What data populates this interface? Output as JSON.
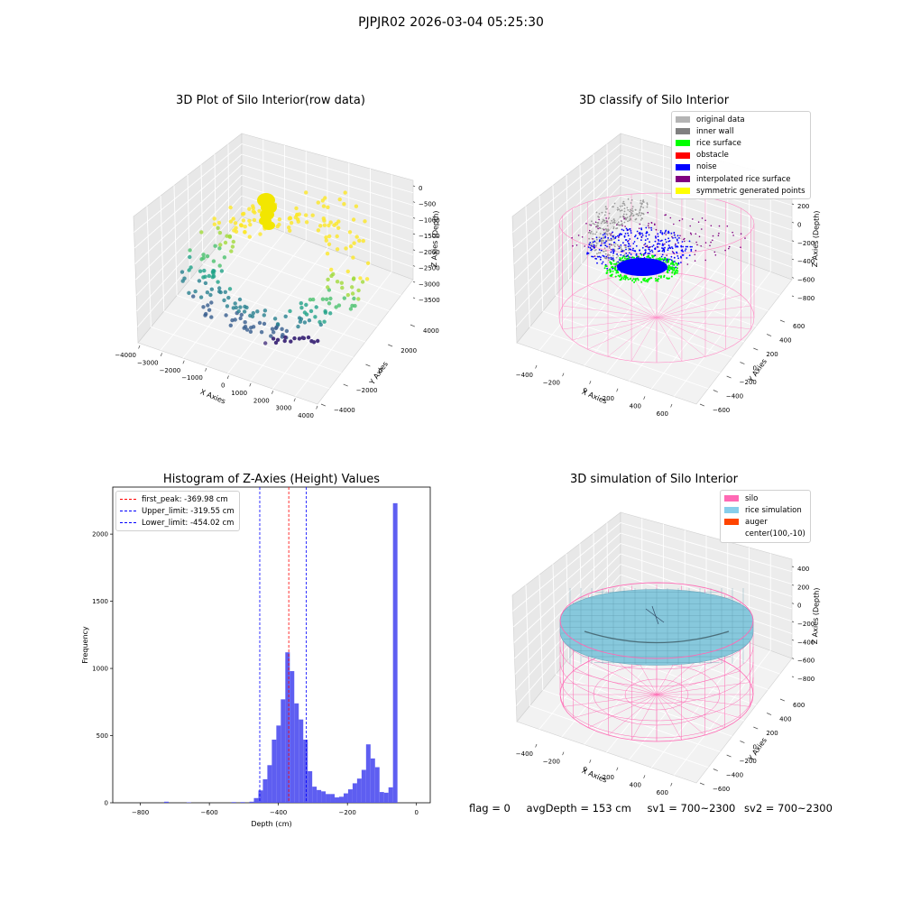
{
  "suptitle": "PJPJR02 2026-03-04 05:25:30",
  "footer": {
    "flag": "flag = 0",
    "avg": "avgDepth = 153 cm",
    "sv1": "sv1 = 700~2300",
    "sv2": "sv2 = 700~2300"
  },
  "chart_data": [
    {
      "type": "scatter",
      "projection": "3d",
      "title": "3D Plot of Silo Interior(row data)",
      "xlabel": "X Axies",
      "ylabel": "Y Axies",
      "zlabel": "Z Axies (Depth)",
      "x_ticks": [
        "−4000",
        "−3000",
        "−2000",
        "−1000",
        "0",
        "1000",
        "2000",
        "3000",
        "4000"
      ],
      "y_ticks": [
        "−4000",
        "−2000",
        "0",
        "2000",
        "4000"
      ],
      "z_ticks": [
        "0",
        "−500",
        "−1000",
        "−1500",
        "−2000",
        "−2500",
        "−3000",
        "−3500"
      ],
      "xlim": [
        -4000,
        4000
      ],
      "ylim": [
        -4000,
        4000
      ],
      "zlim": [
        -3800,
        0
      ],
      "colormap": "viridis",
      "series": [
        {
          "name": "",
          "color": "#eaea1a",
          "points": [
            [
              -900,
              3300,
              -520
            ],
            [
              -850,
              3250,
              -620
            ],
            [
              -880,
              3280,
              -720
            ],
            [
              -820,
              3200,
              -850
            ],
            [
              -860,
              3230,
              -950
            ]
          ]
        }
      ]
    },
    {
      "type": "scatter",
      "projection": "3d",
      "title": "3D classify of Silo Interior",
      "xlabel": "X Axies",
      "ylabel": "Y Axies",
      "zlabel": "Z Axies (Depth)",
      "x_ticks": [
        "−400",
        "−200",
        "0",
        "200",
        "400",
        "600"
      ],
      "y_ticks": [
        "−600",
        "−400",
        "−200",
        "0",
        "200",
        "400",
        "600"
      ],
      "z_ticks": [
        "200",
        "0",
        "−200",
        "−400",
        "−600",
        "−800"
      ],
      "legend": [
        "original data",
        "inner wall",
        "rice surface",
        "obstacle",
        "noise",
        "interpolated rice surface",
        "symmetric generated points"
      ],
      "legend_colors": [
        "#b4b4b4",
        "#808080",
        "#00ff00",
        "#ff0000",
        "#0000ff",
        "#800080",
        "#ffff00"
      ],
      "legend_position": "top-right"
    },
    {
      "type": "bar",
      "title": "Histogram of Z-Axies (Height) Values",
      "xlabel": "Depth (cm)",
      "ylabel": "Frequency",
      "xlim": [
        -880,
        40
      ],
      "ylim": [
        0,
        2350
      ],
      "x_ticks": [
        "−800",
        "−600",
        "−400",
        "−200",
        "0"
      ],
      "y_ticks": [
        "0",
        "500",
        "1000",
        "1500",
        "2000"
      ],
      "bin_width": 13,
      "bins": [
        [
          -731,
          -718,
          8
        ],
        [
          -666,
          -653,
          3
        ],
        [
          -536,
          -523,
          5
        ],
        [
          -510,
          -497,
          5
        ],
        [
          -484,
          -471,
          8
        ],
        [
          -471,
          -458,
          35
        ],
        [
          -458,
          -445,
          92
        ],
        [
          -445,
          -432,
          175
        ],
        [
          -432,
          -419,
          280
        ],
        [
          -419,
          -406,
          470
        ],
        [
          -406,
          -393,
          575
        ],
        [
          -393,
          -380,
          770
        ],
        [
          -380,
          -367,
          1120
        ],
        [
          -367,
          -354,
          980
        ],
        [
          -354,
          -341,
          740
        ],
        [
          -341,
          -328,
          620
        ],
        [
          -328,
          -315,
          470
        ],
        [
          -315,
          -302,
          235
        ],
        [
          -302,
          -289,
          120
        ],
        [
          -289,
          -276,
          95
        ],
        [
          -276,
          -263,
          85
        ],
        [
          -263,
          -250,
          65
        ],
        [
          -250,
          -237,
          65
        ],
        [
          -237,
          -224,
          40
        ],
        [
          -224,
          -211,
          45
        ],
        [
          -211,
          -198,
          70
        ],
        [
          -198,
          -185,
          100
        ],
        [
          -185,
          -172,
          145
        ],
        [
          -172,
          -159,
          180
        ],
        [
          -159,
          -146,
          245
        ],
        [
          -146,
          -133,
          435
        ],
        [
          -133,
          -120,
          330
        ],
        [
          -120,
          -107,
          265
        ],
        [
          -107,
          -94,
          80
        ],
        [
          -94,
          -81,
          75
        ],
        [
          -81,
          -68,
          115
        ],
        [
          -68,
          -55,
          2230
        ]
      ],
      "bar_color": "#5050f0",
      "lines": [
        {
          "label": "first_peak: -369.98 cm",
          "x": -369.98,
          "color": "#ff0000"
        },
        {
          "label": "Upper_limit: -319.55 cm",
          "x": -319.55,
          "color": "#0000ff"
        },
        {
          "label": "Lower_limit: -454.02 cm",
          "x": -454.02,
          "color": "#0000ff"
        }
      ],
      "legend_position": "top-left"
    },
    {
      "type": "area",
      "projection": "3d",
      "title": "3D simulation of Silo Interior",
      "xlabel": "X Axies",
      "ylabel": "Y Axies",
      "zlabel": "Z Axies (Depth)",
      "x_ticks": [
        "−400",
        "−200",
        "0",
        "200",
        "400",
        "600"
      ],
      "y_ticks": [
        "−600",
        "−400",
        "−200",
        "0",
        "200",
        "400",
        "600"
      ],
      "z_ticks": [
        "400",
        "200",
        "0",
        "−200",
        "−400",
        "−600",
        "−800"
      ],
      "legend": [
        "silo",
        "rice simulation",
        "auger",
        "center(100,-10)"
      ],
      "legend_colors": [
        "#ff69b4",
        "#87ceeb",
        "#ff4500",
        ""
      ],
      "legend_position": "top-right"
    }
  ]
}
